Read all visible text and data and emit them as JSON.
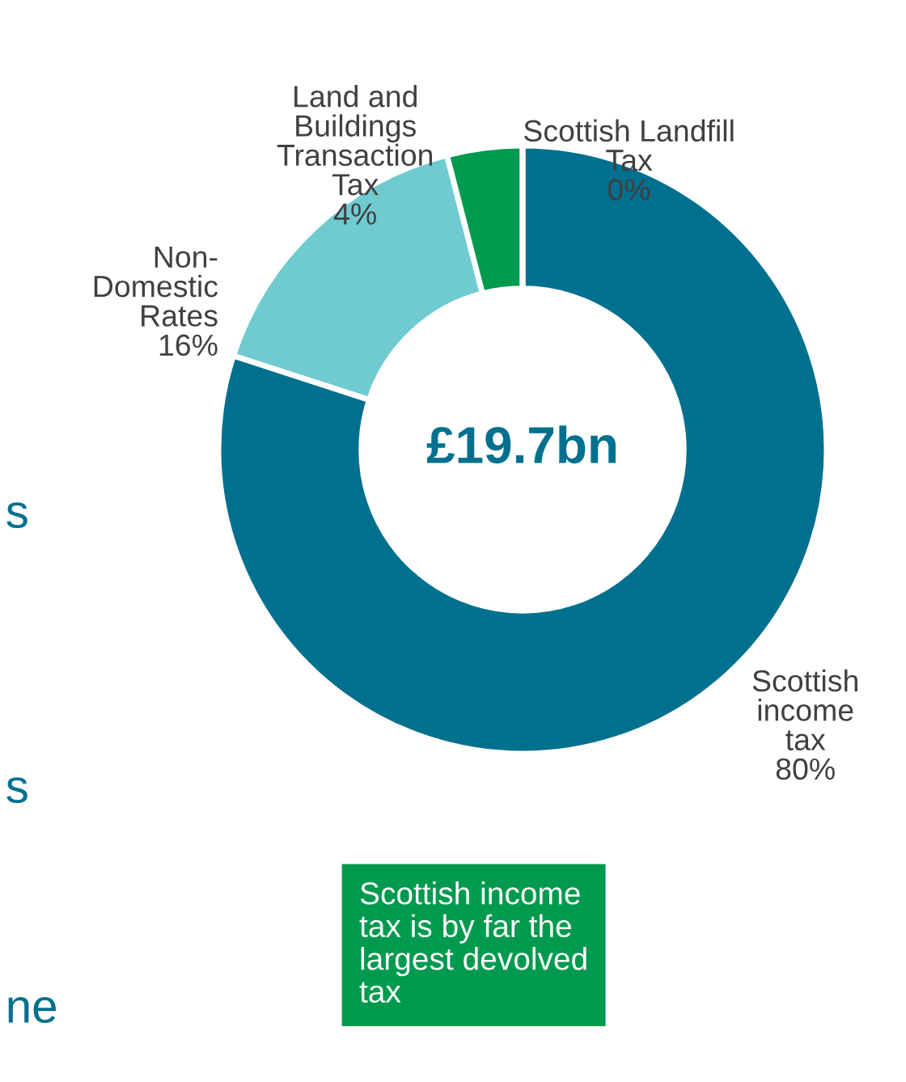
{
  "chart_data": {
    "type": "donut",
    "categories": [
      "Scottish\nincome\ntax",
      "Non-\nDomestic\nRates",
      "Land and\nBuildings\nTransaction\nTax",
      "Scottish Landfill\nTax"
    ],
    "values": [
      80,
      16,
      4,
      0
    ],
    "value_labels": [
      "80%",
      "16%",
      "4%",
      "0%"
    ],
    "colors": [
      "#00708f",
      "#6fcbd0",
      "#009a4e",
      "#6b2d4b"
    ],
    "annotations": [
      "£19.7bn",
      "Scottish income\ntax is by far the\nlargest devolved\ntax",
      "s",
      "s",
      "ne"
    ],
    "legend": false
  }
}
